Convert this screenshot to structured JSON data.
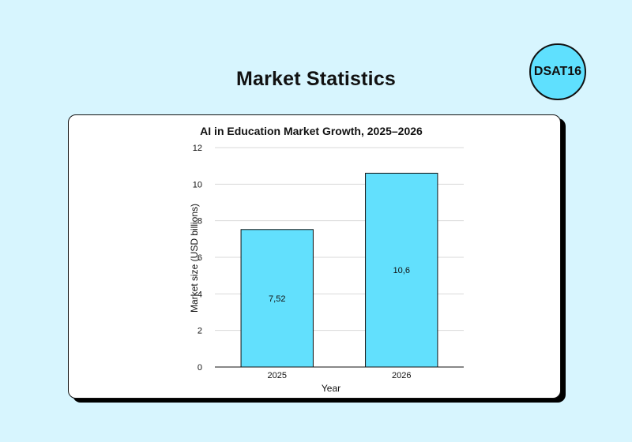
{
  "header": {
    "title": "Market Statistics",
    "badge": "DSAT16"
  },
  "colors": {
    "background": "#d7f5fe",
    "bar_fill": "#62e0fd",
    "badge_fill": "#5fe0fe",
    "card": "#ffffff",
    "outline": "#111111"
  },
  "chart_data": {
    "type": "bar",
    "title": "AI in Education Market Growth, 2025–2026",
    "xlabel": "Year",
    "ylabel": "Market size (USD billions)",
    "categories": [
      "2025",
      "2026"
    ],
    "values": [
      7.52,
      10.6
    ],
    "value_labels": [
      "7,52",
      "10,6"
    ],
    "ylim": [
      0,
      12
    ],
    "yticks": [
      0,
      2,
      4,
      6,
      8,
      10,
      12
    ],
    "grid": true,
    "legend": "none"
  }
}
